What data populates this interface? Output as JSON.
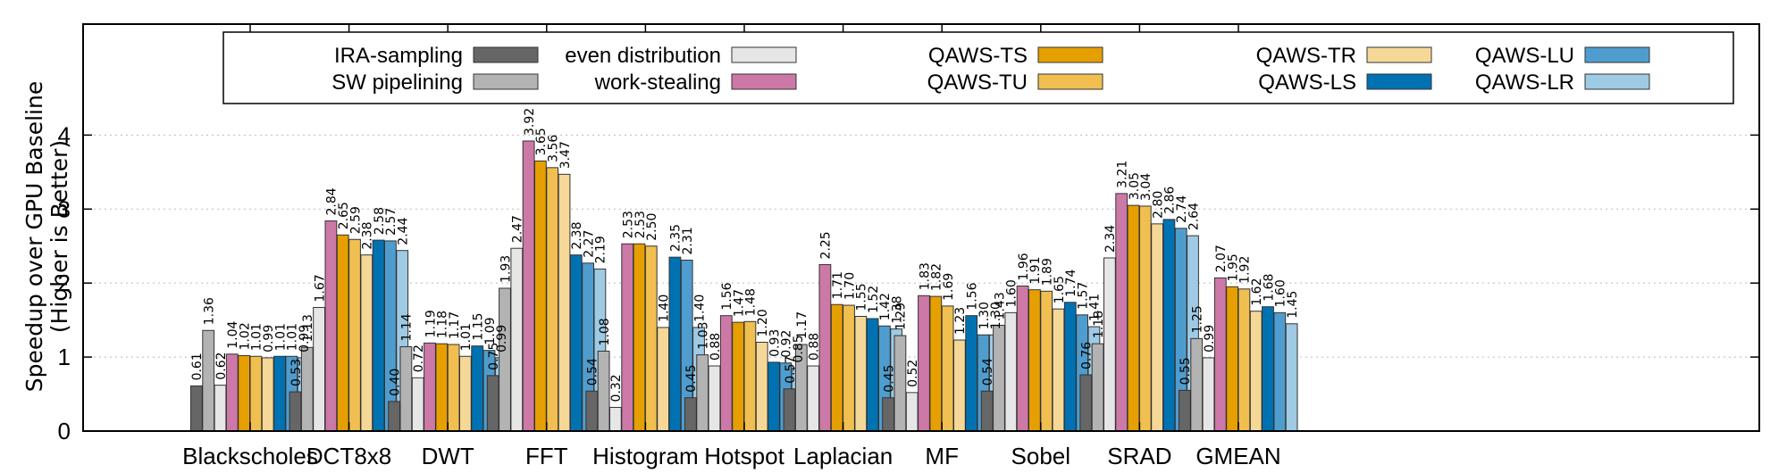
{
  "chart_data": {
    "type": "bar",
    "title": "",
    "xlabel": "",
    "ylabel": "Speedup over GPU Baseline",
    "ylabel_sub": "(Higher is Better)",
    "ylim": [
      0,
      5.5
    ],
    "yticks": [
      0,
      1,
      2,
      3,
      4
    ],
    "grid": true,
    "legend_placement": "top",
    "categories": [
      "Blackscholes",
      "DCT8x8",
      "DWT",
      "FFT",
      "Histogram",
      "Hotspot",
      "Laplacian",
      "MF",
      "Sobel",
      "SRAD",
      "GMEAN"
    ],
    "series": [
      {
        "name": "IRA-sampling",
        "color": "#666666",
        "values": [
          0.61,
          0.53,
          0.4,
          0.75,
          0.54,
          0.45,
          0.57,
          0.45,
          0.54,
          0.76,
          0.55
        ]
      },
      {
        "name": "SW pipelining",
        "color": "#b3b3b3",
        "values": [
          1.36,
          1.13,
          1.14,
          1.93,
          1.08,
          1.03,
          1.17,
          1.29,
          1.43,
          1.18,
          1.25
        ]
      },
      {
        "name": "even distribution",
        "color": "#e6e6e6",
        "values": [
          0.62,
          1.67,
          0.72,
          2.47,
          0.32,
          0.88,
          0.88,
          0.52,
          1.6,
          2.34,
          0.99
        ]
      },
      {
        "name": "work-stealing",
        "color": "#cc79a7",
        "values": [
          1.04,
          2.84,
          1.19,
          3.92,
          2.53,
          1.56,
          2.25,
          1.83,
          1.96,
          3.21,
          2.07
        ]
      },
      {
        "name": "QAWS-TS",
        "color": "#e69f00",
        "values": [
          1.02,
          2.65,
          1.18,
          3.65,
          2.53,
          1.47,
          1.71,
          1.82,
          1.91,
          3.05,
          1.95
        ]
      },
      {
        "name": "QAWS-TU",
        "color": "#f0bf50",
        "values": [
          1.01,
          2.59,
          1.17,
          3.56,
          2.5,
          1.48,
          1.7,
          1.69,
          1.89,
          3.04,
          1.92
        ]
      },
      {
        "name": "QAWS-TR",
        "color": "#f5d898",
        "values": [
          0.99,
          2.38,
          1.01,
          3.47,
          1.4,
          1.2,
          1.55,
          1.23,
          1.65,
          2.8,
          1.62
        ]
      },
      {
        "name": "QAWS-LS",
        "color": "#0072b2",
        "values": [
          1.01,
          2.58,
          1.15,
          2.38,
          2.35,
          0.93,
          1.52,
          1.56,
          1.74,
          2.86,
          1.68
        ]
      },
      {
        "name": "QAWS-LU",
        "color": "#4f9dce",
        "values": [
          1.01,
          2.57,
          1.09,
          2.27,
          2.31,
          0.92,
          1.42,
          1.3,
          1.57,
          2.74,
          1.6
        ]
      },
      {
        "name": "QAWS-LR",
        "color": "#9ecae4",
        "values": [
          0.99,
          2.44,
          0.99,
          2.19,
          1.4,
          0.85,
          1.38,
          1.3,
          1.41,
          2.64,
          1.45
        ]
      }
    ]
  }
}
